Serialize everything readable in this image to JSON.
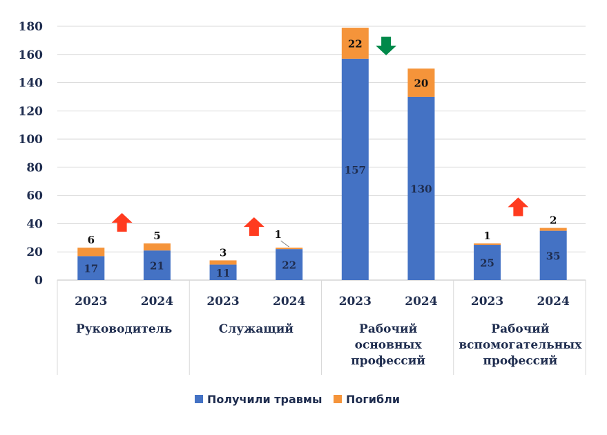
{
  "chart_data": {
    "type": "bar",
    "stacked": true,
    "groups": [
      {
        "label": [
          "Руководитель"
        ],
        "categories": [
          "2023",
          "2024"
        ]
      },
      {
        "label": [
          "Служащий"
        ],
        "categories": [
          "2023",
          "2024"
        ]
      },
      {
        "label": [
          "Рабочий",
          "основных",
          "профессий"
        ],
        "categories": [
          "2023",
          "2024"
        ]
      },
      {
        "label": [
          "Рабочий",
          "вспомогательных",
          "профессий"
        ],
        "categories": [
          "2023",
          "2024"
        ]
      }
    ],
    "series": [
      {
        "name": "Получили травмы",
        "color": "#4472c4",
        "values": [
          17,
          21,
          11,
          22,
          157,
          130,
          25,
          35
        ]
      },
      {
        "name": "Погибли",
        "color": "#f5943a",
        "values": [
          6,
          5,
          3,
          1,
          22,
          20,
          1,
          2
        ]
      }
    ],
    "ylim": [
      0,
      180
    ],
    "yticks": [
      0,
      20,
      40,
      60,
      80,
      100,
      120,
      140,
      160,
      180
    ],
    "grid": true,
    "legend": "bottom-center",
    "trend_arrows": [
      {
        "group": 0,
        "direction": "up",
        "color": "#ff3b1f"
      },
      {
        "group": 1,
        "direction": "up",
        "color": "#ff3b1f"
      },
      {
        "group": 2,
        "direction": "down",
        "color": "#00894a"
      },
      {
        "group": 3,
        "direction": "up",
        "color": "#ff3b1f"
      }
    ]
  }
}
